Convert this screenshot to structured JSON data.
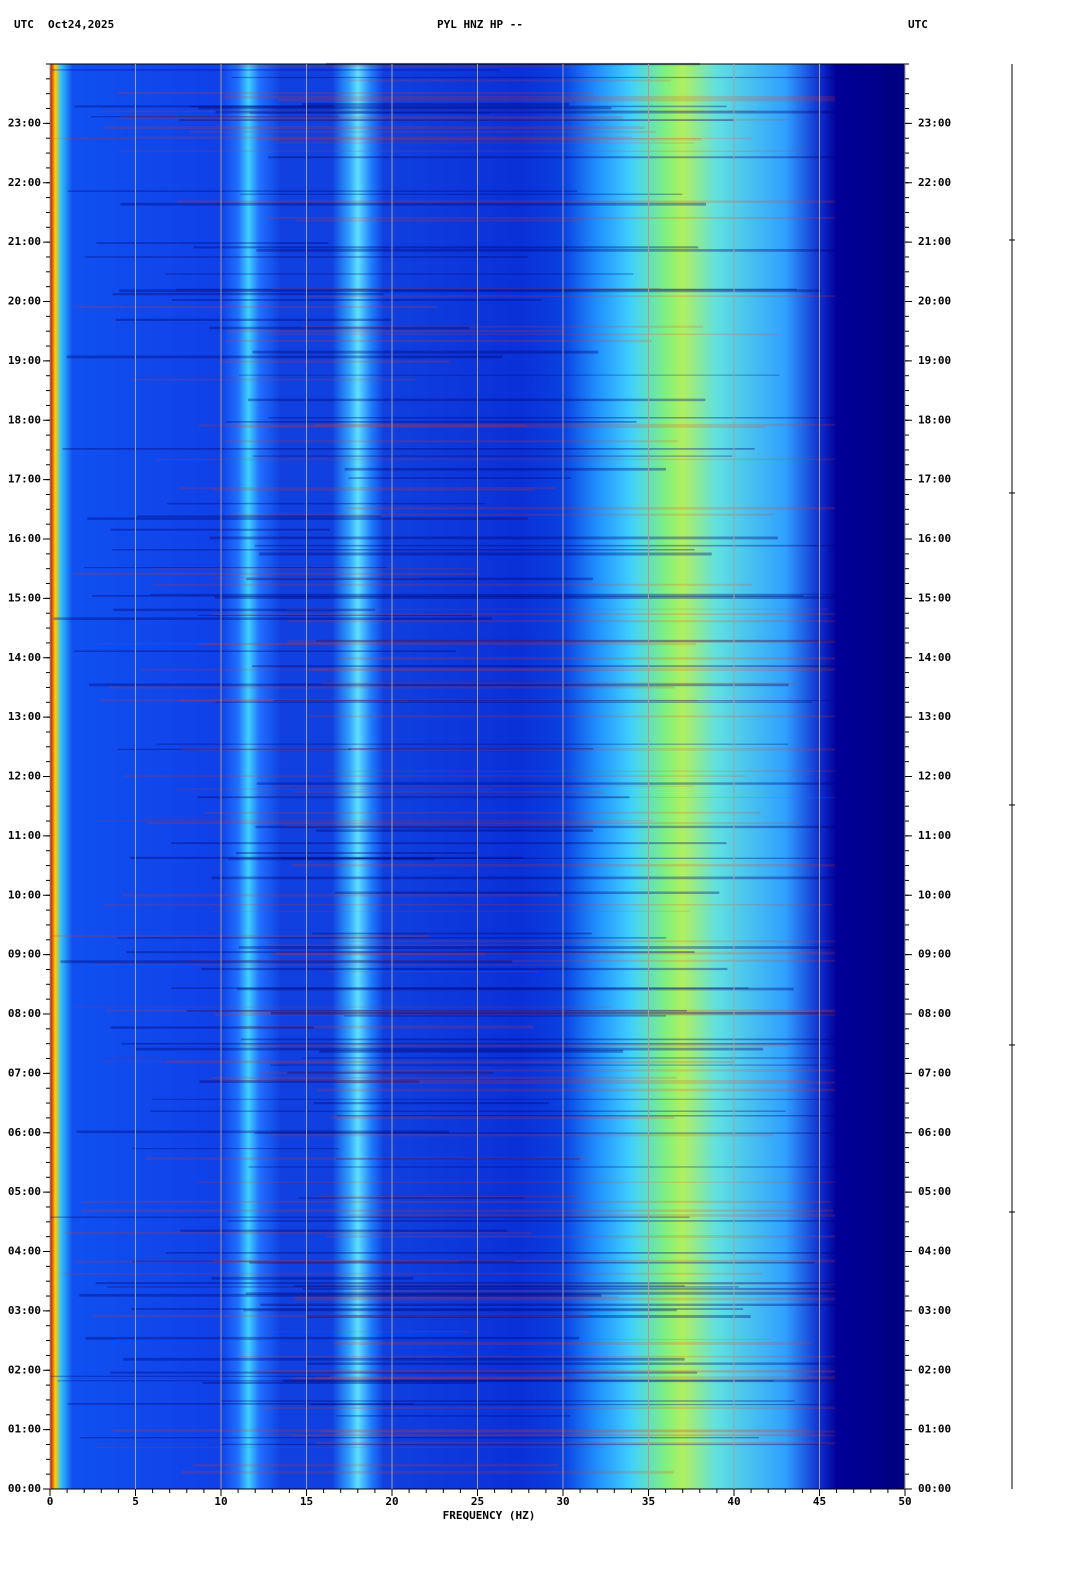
{
  "chart_data": {
    "type": "spectrogram",
    "title": "PYL HNZ HP --",
    "left_header": "UTC",
    "date": "Oct24,2025",
    "right_header": "UTC",
    "x_label": "FREQUENCY (HZ)",
    "xlim": [
      0,
      50
    ],
    "xticks": [
      0,
      5,
      10,
      15,
      20,
      25,
      30,
      35,
      40,
      45,
      50
    ],
    "ylim": [
      0,
      24
    ],
    "yticks": [
      {
        "value": 0,
        "label": "00:00"
      },
      {
        "value": 1,
        "label": "01:00"
      },
      {
        "value": 2,
        "label": "02:00"
      },
      {
        "value": 3,
        "label": "03:00"
      },
      {
        "value": 4,
        "label": "04:00"
      },
      {
        "value": 5,
        "label": "05:00"
      },
      {
        "value": 6,
        "label": "06:00"
      },
      {
        "value": 7,
        "label": "07:00"
      },
      {
        "value": 8,
        "label": "08:00"
      },
      {
        "value": 9,
        "label": "09:00"
      },
      {
        "value": 10,
        "label": "10:00"
      },
      {
        "value": 11,
        "label": "11:00"
      },
      {
        "value": 12,
        "label": "12:00"
      },
      {
        "value": 13,
        "label": "13:00"
      },
      {
        "value": 14,
        "label": "14:00"
      },
      {
        "value": 15,
        "label": "15:00"
      },
      {
        "value": 16,
        "label": "16:00"
      },
      {
        "value": 17,
        "label": "17:00"
      },
      {
        "value": 18,
        "label": "18:00"
      },
      {
        "value": 19,
        "label": "19:00"
      },
      {
        "value": 20,
        "label": "20:00"
      },
      {
        "value": 21,
        "label": "21:00"
      },
      {
        "value": 22,
        "label": "22:00"
      },
      {
        "value": 23,
        "label": "23:00"
      }
    ],
    "grid": true,
    "grid_color": "#a0a0a0"
  }
}
